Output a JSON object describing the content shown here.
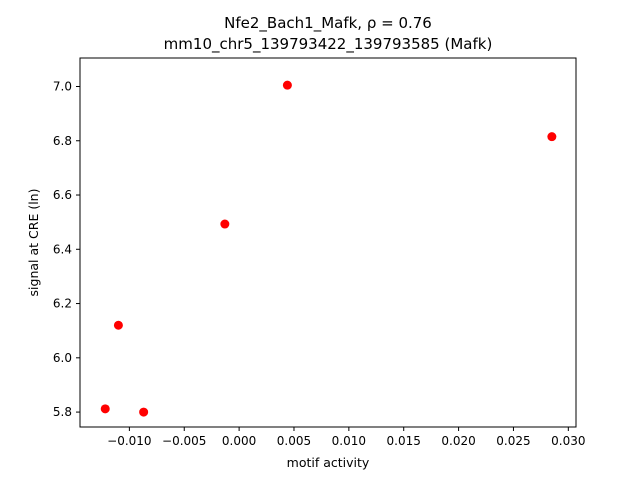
{
  "chart_data": {
    "type": "scatter",
    "title_line1": "Nfe2_Bach1_Mafk, ρ = 0.76",
    "title_line2": "mm10_chr5_139793422_139793585 (Mafk)",
    "xlabel": "motif activity",
    "ylabel": "signal at CRE (ln)",
    "xlim": [
      -0.0145,
      0.0307
    ],
    "ylim": [
      5.745,
      7.105
    ],
    "xticks": [
      -0.01,
      -0.005,
      0.0,
      0.005,
      0.01,
      0.015,
      0.02,
      0.025,
      0.03
    ],
    "xtick_labels": [
      "−0.010",
      "−0.005",
      "0.000",
      "0.005",
      "0.010",
      "0.015",
      "0.020",
      "0.025",
      "0.030"
    ],
    "yticks": [
      5.8,
      6.0,
      6.2,
      6.4,
      6.6,
      6.8,
      7.0
    ],
    "ytick_labels": [
      "5.8",
      "6.0",
      "6.2",
      "6.4",
      "6.6",
      "6.8",
      "7.0"
    ],
    "grid": false,
    "point_color": "#ff0000",
    "points": [
      {
        "x": -0.0122,
        "y": 5.812
      },
      {
        "x": -0.0087,
        "y": 5.8
      },
      {
        "x": -0.011,
        "y": 6.12
      },
      {
        "x": -0.0013,
        "y": 6.493
      },
      {
        "x": 0.0044,
        "y": 7.005
      },
      {
        "x": 0.0285,
        "y": 6.815
      }
    ]
  }
}
